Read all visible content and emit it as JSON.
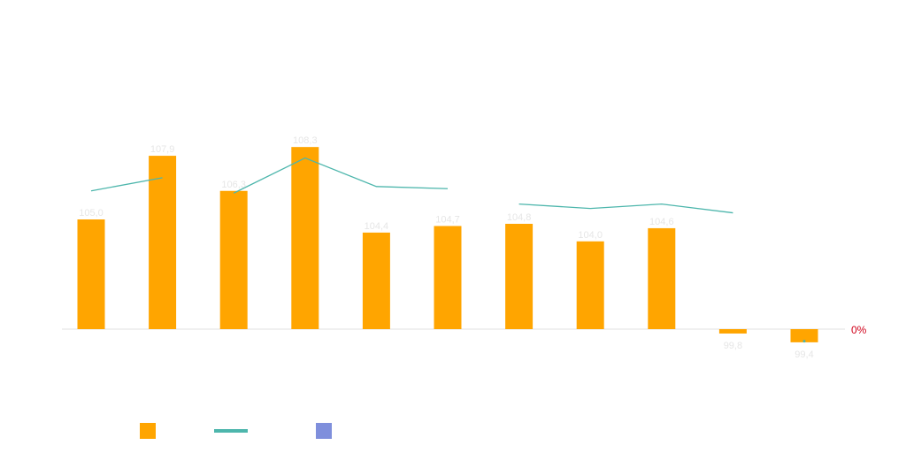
{
  "chart_data": {
    "type": "bar",
    "baseline": 100,
    "ylim": [
      99,
      109
    ],
    "right_axis_label": "0%",
    "values": [
      105.0,
      107.9,
      106.3,
      108.3,
      104.4,
      104.7,
      104.8,
      104.0,
      104.6,
      99.8,
      99.4
    ],
    "value_labels": [
      "105,0",
      "107,9",
      "106,3",
      "108,3",
      "104,4",
      "104,7",
      "104,8",
      "104,0",
      "104,6",
      "99,8",
      "99,4"
    ],
    "line_segments": [
      [
        [
          0,
          106.3
        ],
        [
          1,
          106.9
        ]
      ],
      [
        [
          2,
          106.2
        ],
        [
          3,
          107.8
        ],
        [
          4,
          106.5
        ],
        [
          5,
          106.4
        ]
      ],
      [
        [
          6,
          105.7
        ],
        [
          7,
          105.5
        ],
        [
          8,
          105.7
        ],
        [
          9,
          105.3
        ]
      ],
      [
        [
          10,
          99.45
        ]
      ]
    ],
    "colors": {
      "bar": "#ffa500",
      "line": "#4db6ac",
      "legend_third": "#7f8fdc",
      "axis": "#e0e0e0",
      "pct": "#d0021b"
    },
    "legend": [
      {
        "kind": "bar",
        "color": "#ffa500"
      },
      {
        "kind": "line",
        "color": "#4db6ac"
      },
      {
        "kind": "bar",
        "color": "#7f8fdc"
      }
    ]
  }
}
